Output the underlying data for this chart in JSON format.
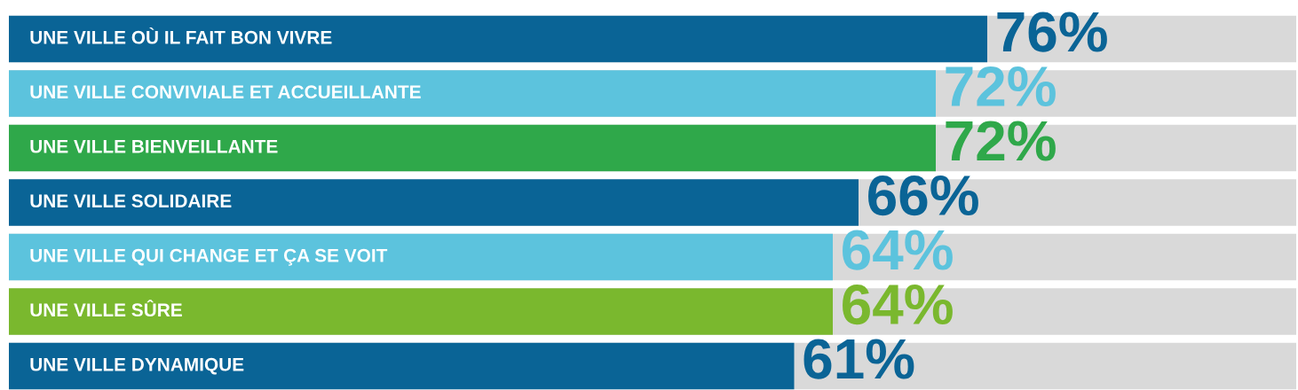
{
  "chart_data": {
    "type": "bar",
    "orientation": "horizontal",
    "categories": [
      "UNE VILLE OÙ IL FAIT BON VIVRE",
      "UNE VILLE CONVIVIALE ET ACCUEILLANTE",
      "UNE VILLE BIENVEILLANTE",
      "UNE VILLE SOLIDAIRE",
      "UNE VILLE QUI CHANGE ET ÇA SE VOIT",
      "UNE VILLE SÛRE",
      "UNE VILLE DYNAMIQUE"
    ],
    "series": [
      {
        "values": [
          76,
          72,
          72,
          66,
          64,
          64,
          61
        ],
        "colors": [
          "#0a6496",
          "#5cc3dd",
          "#2fa84a",
          "#0a6496",
          "#5cc3dd",
          "#7ab82e",
          "#0a6496"
        ],
        "value_labels": [
          "76%",
          "72%",
          "72%",
          "66%",
          "64%",
          "64%",
          "61%"
        ]
      }
    ],
    "xlim": [
      0,
      100
    ]
  }
}
